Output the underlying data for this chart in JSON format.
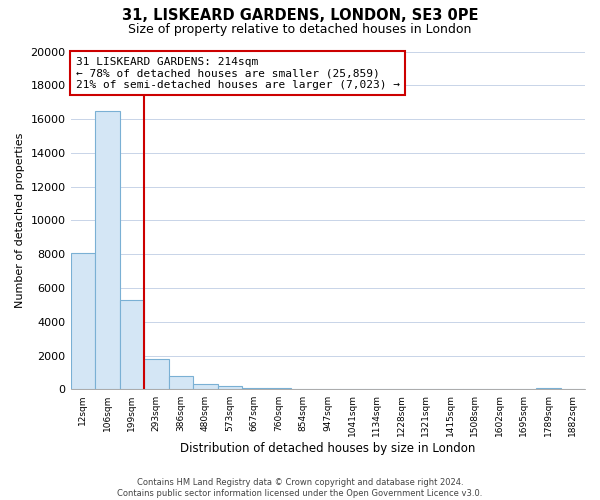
{
  "title": "31, LISKEARD GARDENS, LONDON, SE3 0PE",
  "subtitle": "Size of property relative to detached houses in London",
  "xlabel": "Distribution of detached houses by size in London",
  "ylabel": "Number of detached properties",
  "bar_labels": [
    "12sqm",
    "106sqm",
    "199sqm",
    "293sqm",
    "386sqm",
    "480sqm",
    "573sqm",
    "667sqm",
    "760sqm",
    "854sqm",
    "947sqm",
    "1041sqm",
    "1134sqm",
    "1228sqm",
    "1321sqm",
    "1415sqm",
    "1508sqm",
    "1602sqm",
    "1695sqm",
    "1789sqm",
    "1882sqm"
  ],
  "bar_values": [
    8100,
    16500,
    5300,
    1800,
    800,
    350,
    200,
    100,
    100,
    0,
    0,
    0,
    0,
    0,
    0,
    0,
    0,
    0,
    0,
    100,
    0
  ],
  "bar_color_fill": "#d4e6f5",
  "bar_color_edge": "#7ab0d4",
  "highlight_line_color": "#cc0000",
  "annotation_line1": "31 LISKEARD GARDENS: 214sqm",
  "annotation_line2": "← 78% of detached houses are smaller (25,859)",
  "annotation_line3": "21% of semi-detached houses are larger (7,023) →",
  "annotation_box_color": "#ffffff",
  "annotation_box_edge": "#cc0000",
  "ylim": [
    0,
    20000
  ],
  "yticks": [
    0,
    2000,
    4000,
    6000,
    8000,
    10000,
    12000,
    14000,
    16000,
    18000,
    20000
  ],
  "footer_line1": "Contains HM Land Registry data © Crown copyright and database right 2024.",
  "footer_line2": "Contains public sector information licensed under the Open Government Licence v3.0.",
  "background_color": "#ffffff",
  "grid_color": "#c8d4e8"
}
